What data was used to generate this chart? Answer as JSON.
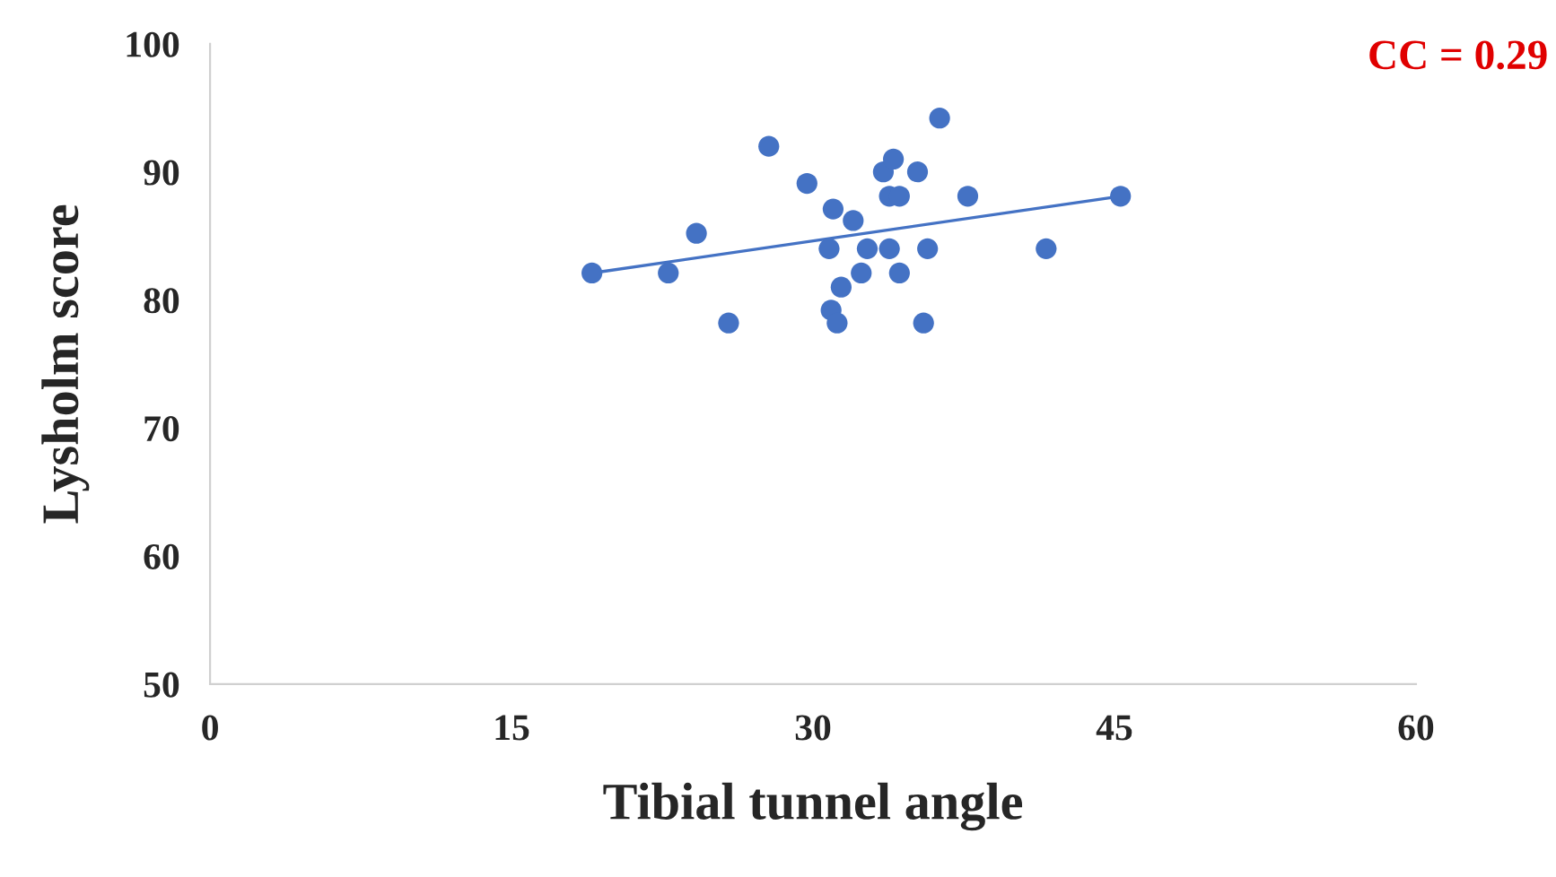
{
  "chart_data": {
    "type": "scatter",
    "xlabel": "Tibial tunnel angle",
    "ylabel": "Lysholm score",
    "annotations": [
      "CC = 0.29"
    ],
    "xlim": [
      0,
      60
    ],
    "xticks": [
      0,
      15,
      30,
      45,
      60
    ],
    "ylim": [
      50,
      100
    ],
    "yticks": [
      50,
      60,
      70,
      80,
      90,
      100
    ],
    "grid": false,
    "legend": false,
    "series": [
      {
        "marker": "circle",
        "color": "#4472c4",
        "x": [
          19.0,
          22.8,
          24.2,
          25.8,
          27.8,
          29.7,
          31.0,
          30.8,
          32.0,
          30.9,
          31.2,
          31.4,
          32.4,
          32.7,
          33.8,
          33.5,
          34.0,
          33.8,
          34.3,
          34.3,
          35.2,
          35.7,
          35.5,
          36.3,
          37.7,
          41.6,
          45.3
        ],
        "values": [
          82.1,
          82.1,
          85.2,
          78.2,
          92.0,
          89.1,
          87.1,
          84.0,
          86.2,
          79.2,
          78.2,
          81.0,
          82.1,
          84.0,
          84.0,
          90.0,
          91.0,
          88.1,
          88.1,
          82.1,
          90.0,
          84.0,
          78.2,
          94.2,
          88.1,
          84.0,
          88.1
        ]
      },
      {
        "type": "line",
        "marker": "none",
        "color": "#4472c4",
        "x": [
          19.0,
          45.3
        ],
        "values": [
          82.1,
          88.1
        ]
      }
    ]
  }
}
